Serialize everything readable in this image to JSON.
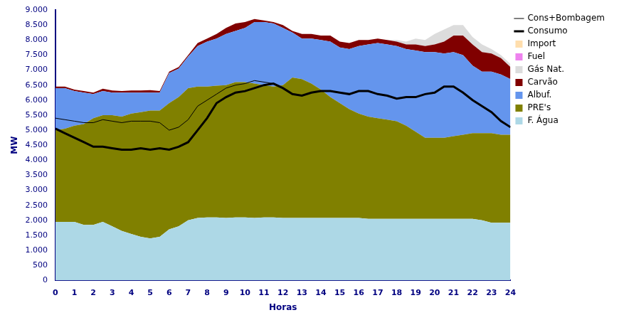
{
  "chart_data": {
    "type": "area",
    "stacked": true,
    "grid": false,
    "legend": "right",
    "x_label": "Horas",
    "y_label": "MW",
    "x": [
      0,
      0.5,
      1,
      1.5,
      2,
      2.5,
      3,
      3.5,
      4,
      4.5,
      5,
      5.5,
      6,
      6.5,
      7,
      7.5,
      8,
      8.5,
      9,
      9.5,
      10,
      10.5,
      11,
      11.5,
      12,
      12.5,
      13,
      13.5,
      14,
      14.5,
      15,
      15.5,
      16,
      16.5,
      17,
      17.5,
      18,
      18.5,
      19,
      19.5,
      20,
      20.5,
      21,
      21.5,
      22,
      22.5,
      23,
      23.5,
      24
    ],
    "xlim": [
      0,
      24
    ],
    "xticks": [
      0,
      1,
      2,
      3,
      4,
      5,
      6,
      7,
      8,
      9,
      10,
      11,
      12,
      13,
      14,
      15,
      16,
      17,
      18,
      19,
      20,
      21,
      22,
      23,
      24
    ],
    "ylim": [
      0,
      9000
    ],
    "yticks": [
      0,
      {
        "value": 500,
        "label": "500"
      },
      {
        "value": 1000,
        "label": "1.000"
      },
      {
        "value": 1500,
        "label": "1.500"
      },
      {
        "value": 2000,
        "label": "2.000"
      },
      {
        "value": 2500,
        "label": "2.500"
      },
      {
        "value": 3000,
        "label": "3.000"
      },
      {
        "value": 3500,
        "label": "3.500"
      },
      {
        "value": 4000,
        "label": "4.000"
      },
      {
        "value": 4500,
        "label": "4.500"
      },
      {
        "value": 5000,
        "label": "5.000"
      },
      {
        "value": 5500,
        "label": "5.500"
      },
      {
        "value": 6000,
        "label": "6.000"
      },
      {
        "value": 6500,
        "label": "6.500"
      },
      {
        "value": 7000,
        "label": "7.000"
      },
      {
        "value": 7500,
        "label": "7.500"
      },
      {
        "value": 8000,
        "label": "8.000"
      },
      {
        "value": 8500,
        "label": "8.500"
      },
      {
        "value": 9000,
        "label": "9.000"
      }
    ],
    "series": [
      {
        "name": "F. Água",
        "type": "area",
        "color": "#add8e6",
        "values": [
          1950,
          1950,
          1950,
          1850,
          1850,
          1950,
          1800,
          1650,
          1550,
          1450,
          1400,
          1450,
          1700,
          1800,
          2000,
          2080,
          2100,
          2100,
          2080,
          2100,
          2100,
          2080,
          2100,
          2100,
          2080,
          2080,
          2080,
          2080,
          2080,
          2080,
          2080,
          2080,
          2080,
          2050,
          2050,
          2050,
          2050,
          2050,
          2050,
          2050,
          2050,
          2050,
          2050,
          2050,
          2050,
          2000,
          1920,
          1920,
          1920
        ]
      },
      {
        "name": "PRE's",
        "type": "area",
        "color": "#808000",
        "values": [
          3050,
          3100,
          3200,
          3350,
          3550,
          3550,
          3700,
          3800,
          4000,
          4150,
          4250,
          4200,
          4200,
          4300,
          4400,
          4370,
          4350,
          4380,
          4420,
          4500,
          4500,
          4470,
          4400,
          4350,
          4420,
          4670,
          4620,
          4470,
          4270,
          4020,
          3820,
          3620,
          3470,
          3400,
          3350,
          3300,
          3250,
          3100,
          2900,
          2700,
          2700,
          2700,
          2750,
          2800,
          2850,
          2900,
          2980,
          2930,
          2930
        ]
      },
      {
        "name": "Albuf.",
        "type": "area",
        "color": "#6495ed",
        "values": [
          1400,
          1350,
          1150,
          1050,
          800,
          800,
          750,
          800,
          700,
          650,
          600,
          600,
          1000,
          950,
          1050,
          1350,
          1500,
          1570,
          1700,
          1700,
          1800,
          2050,
          2100,
          2100,
          1900,
          1500,
          1350,
          1500,
          1650,
          1850,
          1850,
          2000,
          2250,
          2400,
          2500,
          2500,
          2500,
          2550,
          2700,
          2850,
          2850,
          2800,
          2800,
          2650,
          2250,
          2050,
          2050,
          2000,
          1850
        ]
      },
      {
        "name": "Carvão",
        "type": "area",
        "color": "#800000",
        "values": [
          50,
          50,
          50,
          50,
          50,
          80,
          70,
          50,
          70,
          70,
          80,
          50,
          50,
          50,
          50,
          100,
          100,
          150,
          200,
          250,
          200,
          100,
          50,
          50,
          100,
          50,
          150,
          150,
          150,
          200,
          200,
          200,
          200,
          150,
          150,
          150,
          150,
          150,
          200,
          200,
          250,
          400,
          550,
          650,
          700,
          650,
          600,
          550,
          400
        ]
      },
      {
        "name": "Gás Nat.",
        "type": "area",
        "color": "#dcdcdc",
        "values": [
          0,
          0,
          0,
          0,
          0,
          0,
          0,
          0,
          0,
          0,
          0,
          0,
          0,
          0,
          0,
          0,
          0,
          0,
          0,
          0,
          0,
          0,
          0,
          0,
          0,
          0,
          0,
          0,
          0,
          0,
          0,
          0,
          0,
          0,
          0,
          0,
          50,
          100,
          200,
          200,
          350,
          400,
          350,
          350,
          250,
          250,
          150,
          100,
          100
        ]
      },
      {
        "name": "Fuel",
        "type": "area",
        "color": "#ee82ee",
        "values": [
          0,
          0,
          0,
          0,
          0,
          0,
          0,
          0,
          0,
          0,
          0,
          0,
          0,
          0,
          0,
          0,
          0,
          0,
          0,
          0,
          0,
          0,
          0,
          0,
          0,
          0,
          0,
          0,
          0,
          0,
          0,
          0,
          0,
          0,
          0,
          0,
          0,
          0,
          0,
          0,
          0,
          0,
          0,
          0,
          0,
          0,
          0,
          0,
          0
        ]
      },
      {
        "name": "Import",
        "type": "area",
        "color": "#ffdead",
        "values": [
          0,
          0,
          0,
          0,
          0,
          0,
          0,
          0,
          0,
          0,
          0,
          0,
          0,
          0,
          0,
          0,
          0,
          0,
          0,
          0,
          0,
          0,
          0,
          0,
          0,
          0,
          0,
          0,
          0,
          0,
          0,
          0,
          0,
          0,
          0,
          0,
          0,
          0,
          0,
          0,
          0,
          0,
          0,
          0,
          0,
          0,
          0,
          0,
          0
        ]
      },
      {
        "name": "Consumo",
        "type": "line",
        "color": "#000000",
        "line_style": "solid",
        "values": [
          5050,
          4900,
          4750,
          4600,
          4450,
          4450,
          4400,
          4350,
          4350,
          4400,
          4350,
          4400,
          4350,
          4450,
          4600,
          5000,
          5400,
          5900,
          6100,
          6250,
          6300,
          6400,
          6500,
          6550,
          6400,
          6200,
          6150,
          6250,
          6300,
          6300,
          6250,
          6200,
          6300,
          6300,
          6200,
          6150,
          6050,
          6100,
          6100,
          6200,
          6250,
          6450,
          6450,
          6250,
          6000,
          5800,
          5600,
          5300,
          5100
        ]
      },
      {
        "name": "Cons+Bombagem",
        "type": "line",
        "color": "#000000",
        "line_style": "solid",
        "values": [
          5400,
          5350,
          5300,
          5250,
          5250,
          5350,
          5300,
          5250,
          5300,
          5300,
          5300,
          5250,
          5000,
          5100,
          5350,
          5800,
          6000,
          6200,
          6400,
          6500,
          6550,
          6650,
          6600,
          6550,
          6400,
          6200,
          6150,
          6250,
          6300,
          6300,
          6250,
          6200,
          6300,
          6300,
          6200,
          6150,
          6050,
          6100,
          6100,
          6200,
          6250,
          6450,
          6450,
          6250,
          6000,
          5800,
          5600,
          5300,
          5100
        ]
      }
    ]
  }
}
